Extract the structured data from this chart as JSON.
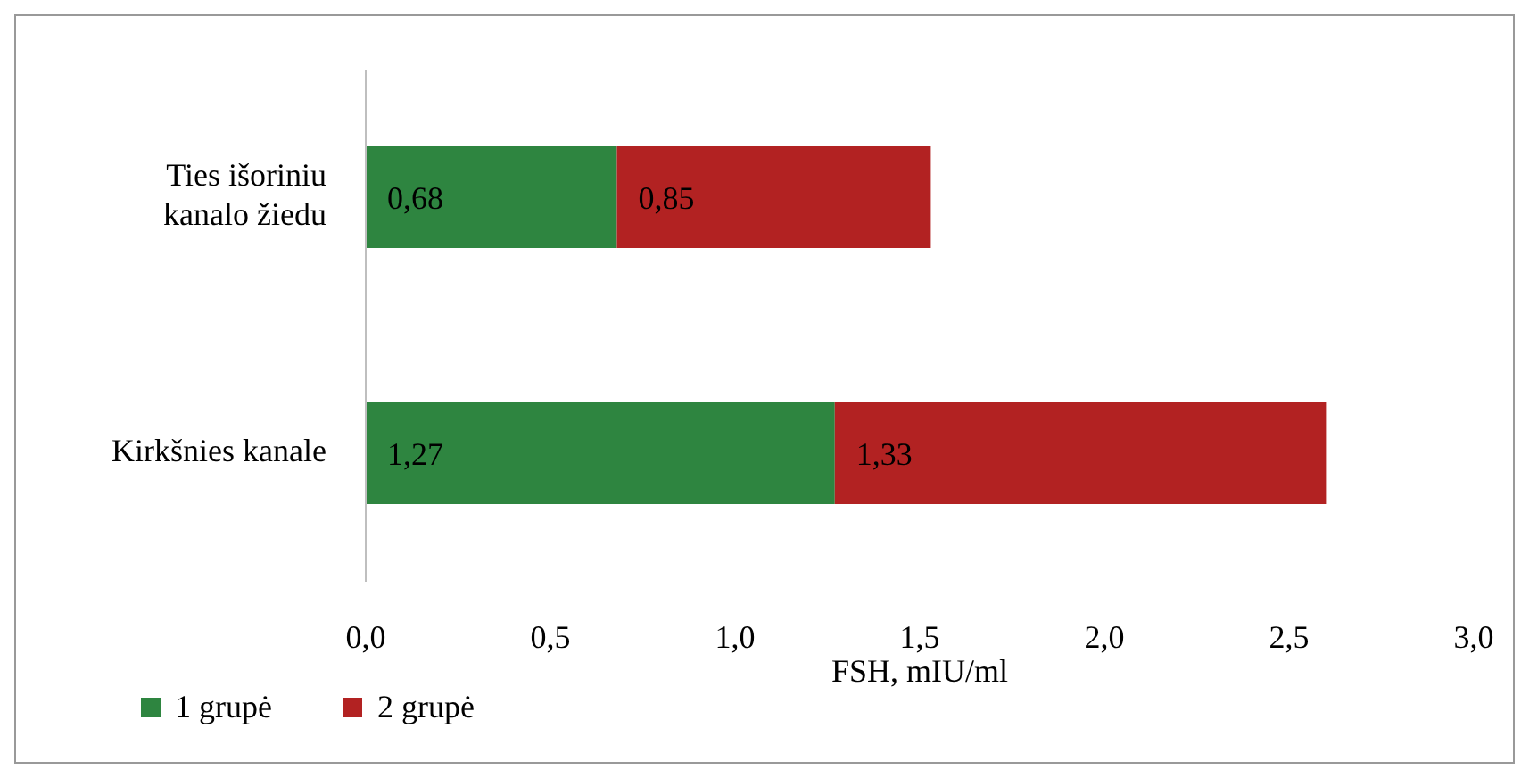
{
  "chart_data": {
    "type": "bar",
    "orientation": "horizontal",
    "stacked": true,
    "categories": [
      "Ties išoriniu kanalo žiedu",
      "Kirkšnies kanale"
    ],
    "series": [
      {
        "name": "1 grupė",
        "color": "#2e8540",
        "values": [
          0.68,
          1.27
        ],
        "value_labels": [
          "0,68",
          "1,27"
        ]
      },
      {
        "name": "2 grupė",
        "color": "#b22222",
        "values": [
          0.85,
          1.33
        ],
        "value_labels": [
          "0,85",
          "1,33"
        ]
      }
    ],
    "xlim": [
      0,
      3
    ],
    "xticks": [
      {
        "value": 0,
        "label": "0,0"
      },
      {
        "value": 0.5,
        "label": "0,5"
      },
      {
        "value": 1,
        "label": "1,0"
      },
      {
        "value": 1.5,
        "label": "1,5"
      },
      {
        "value": 2,
        "label": "2,0"
      },
      {
        "value": 2.5,
        "label": "2,5"
      },
      {
        "value": 3,
        "label": "3,0"
      }
    ],
    "xlabel": "FSH, mIU/ml",
    "grid": false,
    "legend": "bottom left"
  }
}
